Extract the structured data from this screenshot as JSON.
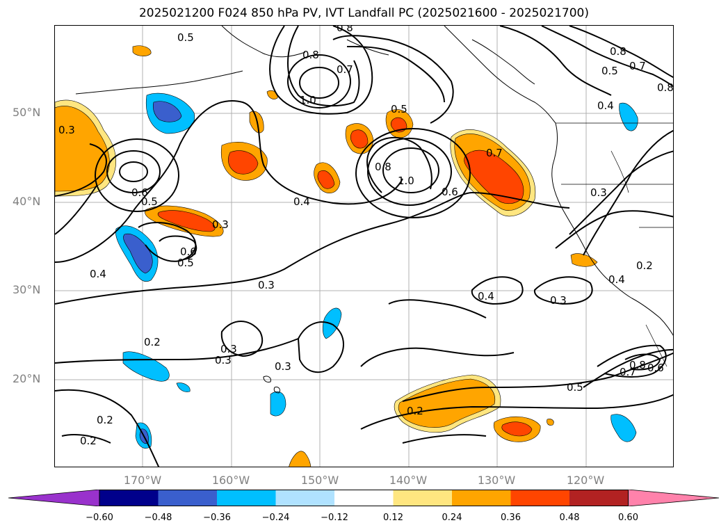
{
  "title": "2025021200 F024 850 hPa PV, IVT Landfall PC (2025021600 - 2025021700)",
  "lat_labels": [
    "50°N",
    "40°N",
    "30°N",
    "20°N"
  ],
  "lon_labels": [
    "170°W",
    "160°W",
    "150°W",
    "140°W",
    "130°W",
    "120°W"
  ],
  "colorbar": {
    "ticks": [
      "−0.60",
      "−0.48",
      "−0.36",
      "−0.24",
      "−0.12",
      "0.12",
      "0.24",
      "0.36",
      "0.48",
      "0.60"
    ],
    "colors": [
      "#9932cc",
      "#00008b",
      "#3a5fcd",
      "#00bfff",
      "#b0e2ff",
      "#ffffff",
      "#ffe680",
      "#ffa500",
      "#ff4500",
      "#b22222",
      "#ff82ab"
    ]
  },
  "contour_labels": [
    "0.5",
    "0.8",
    "0.8",
    "0.7",
    "1.0",
    "0.5",
    "0.8",
    "0.5",
    "0.7",
    "0.8",
    "0.4",
    "0.3",
    "0.6",
    "0.5",
    "1.0",
    "0.8",
    "0.6",
    "0.7",
    "0.4",
    "0.3",
    "0.3",
    "0.6",
    "0.5",
    "0.4",
    "0.3",
    "0.4",
    "0.3",
    "0.2",
    "0.4",
    "0.2",
    "0.3",
    "0.3",
    "0.3",
    "0.8",
    "0.7",
    "0.6",
    "0.5",
    "0.2",
    "0.2",
    "0.2"
  ]
}
